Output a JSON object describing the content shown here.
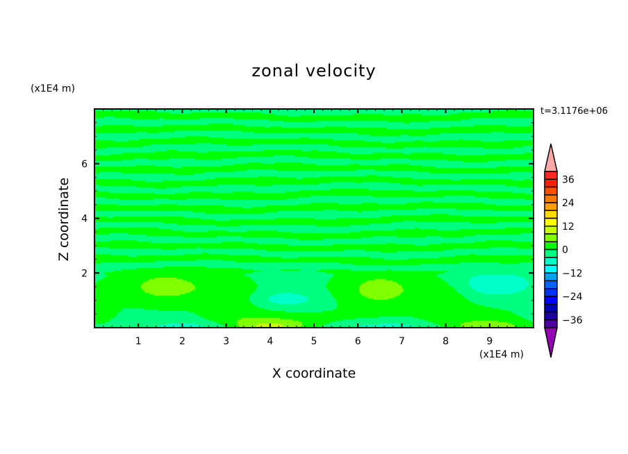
{
  "chart_data": {
    "type": "heatmap",
    "subtype": "filled-contour",
    "title": "zonal velocity",
    "xlabel": "X coordinate",
    "ylabel": "Z coordinate",
    "x_unit": "(x1E4 m)",
    "y_unit": "(x1E4 m)",
    "annotation": "t=3.1176e+06",
    "xlim": [
      0,
      10
    ],
    "ylim": [
      0,
      8
    ],
    "x_ticks": [
      "1",
      "2",
      "3",
      "4",
      "5",
      "6",
      "7",
      "8",
      "9"
    ],
    "y_ticks": [
      "2",
      "4",
      "6"
    ],
    "colorbar": {
      "levels": [
        -40,
        -36,
        -32,
        -28,
        -24,
        -20,
        -16,
        -12,
        -8,
        -4,
        0,
        4,
        8,
        12,
        16,
        20,
        24,
        28,
        32,
        36,
        40
      ],
      "tick_labels": [
        "36",
        "24",
        "12",
        "0",
        "-12",
        "-24",
        "-36"
      ],
      "extend": "both",
      "colors_top_to_bottom": [
        "#ff2828",
        "#ff1e00",
        "#ff5000",
        "#ff7800",
        "#ffa000",
        "#ffdc00",
        "#ffff00",
        "#c8ff00",
        "#80ff00",
        "#00ff00",
        "#00ff80",
        "#00ffc8",
        "#00ffff",
        "#00a0ff",
        "#0064ff",
        "#0032ff",
        "#0000ff",
        "#0000b4",
        "#1e00a0",
        "#5000a0"
      ],
      "over_color": "#ffa8a8",
      "under_color": "#9600b4"
    },
    "visible_value_range": [
      -8,
      8
    ],
    "features": [
      {
        "kind": "alternating horizontal bands",
        "z_range": [
          2,
          8
        ],
        "levels": [
          "-4 to 0",
          "0 to 4"
        ]
      },
      {
        "kind": "positive maximum",
        "x": 1.5,
        "z": 1.6,
        "level": "4 to 8"
      },
      {
        "kind": "positive maximum",
        "x": 6.6,
        "z": 1.4,
        "level": "4 to 8"
      },
      {
        "kind": "negative minimum",
        "x": 4.3,
        "z": 1.05,
        "level": "-8 to -4"
      },
      {
        "kind": "negative minimum",
        "x": 9.1,
        "z": 1.6,
        "level": "-8 to -4"
      }
    ]
  }
}
